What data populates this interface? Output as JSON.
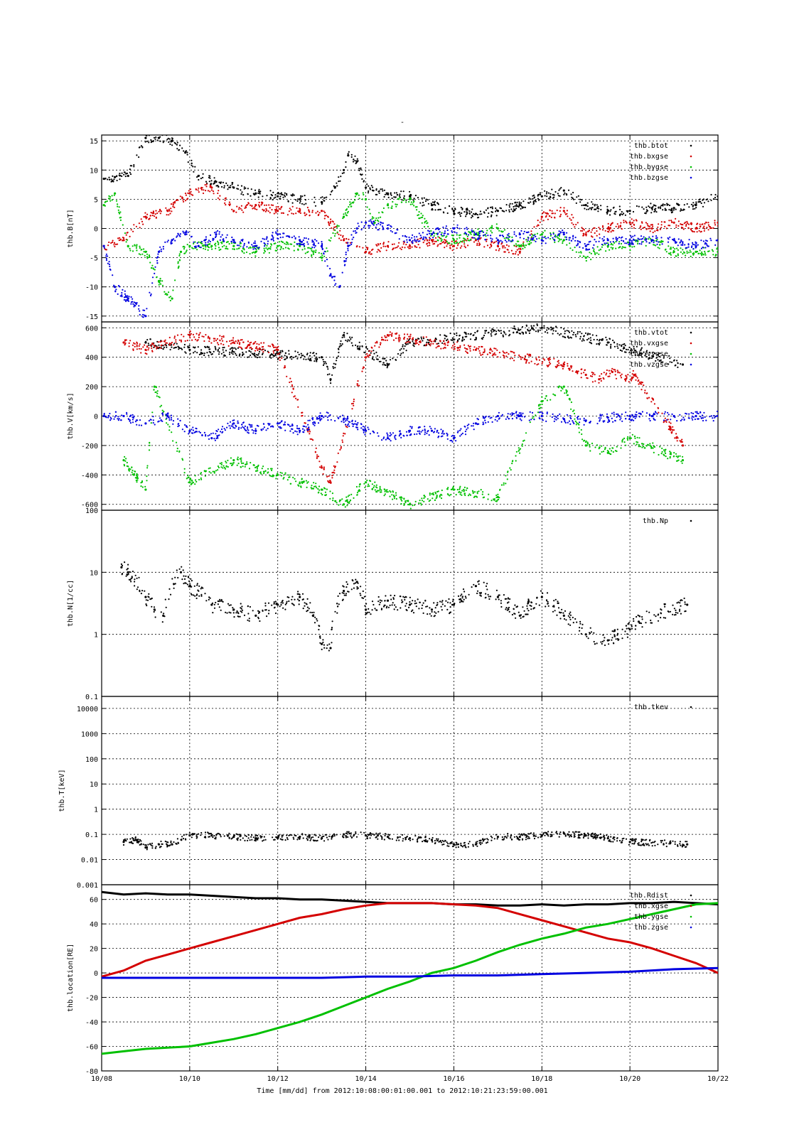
{
  "figure": {
    "top_title": "-",
    "time_label": "Time [mm/dd]  from 2012:10:08:00:01:00.001  to  2012:10:21:23:59:00.001",
    "x_ticks": [
      "10/08",
      "10/10",
      "10/12",
      "10/14",
      "10/16",
      "10/18",
      "10/20",
      "10/22"
    ],
    "colors": {
      "black": "#000000",
      "red": "#d40000",
      "green": "#00c000",
      "blue": "#0000e0"
    }
  },
  "chart_data": [
    {
      "type": "scatter",
      "ylabel": "thb.B[nT]",
      "ylim": [
        -16,
        16
      ],
      "log": false,
      "yticks": [
        -15,
        -10,
        -5,
        0,
        5,
        10,
        15
      ],
      "ytick_labels": [
        "-15",
        "-10",
        "-5",
        "0",
        "5",
        "10",
        "15"
      ],
      "legend_placement": "top-right",
      "grid": true,
      "series": [
        {
          "name": "thb.btot",
          "color": "#000000",
          "mode": "points",
          "x": [
            0.05,
            0.3,
            0.6,
            1.0,
            1.3,
            1.6,
            1.9,
            2.2,
            2.6,
            3.0,
            3.5,
            4.0,
            4.5,
            5.0,
            5.3,
            5.5,
            5.6,
            5.8,
            6.0,
            6.5,
            7.0,
            7.5,
            8.0,
            8.5,
            9.0,
            9.5,
            10.0,
            10.5,
            11.0,
            11.5,
            12.0,
            12.5,
            13.0,
            13.5,
            14.0
          ],
          "y": [
            8.5,
            8.8,
            9.0,
            15.5,
            15.5,
            15.0,
            13.0,
            9.0,
            8.0,
            7.0,
            6.0,
            5.5,
            5.0,
            4.5,
            7.0,
            10.0,
            12.5,
            11.5,
            7.0,
            6.0,
            5.5,
            4.0,
            3.0,
            2.5,
            3.0,
            4.0,
            5.5,
            6.5,
            4.0,
            3.0,
            3.0,
            3.5,
            3.5,
            4.0,
            5.5
          ]
        },
        {
          "name": "thb.bxgse",
          "color": "#d40000",
          "mode": "points",
          "x": [
            0.05,
            0.5,
            1.0,
            1.5,
            2.0,
            2.5,
            3.0,
            3.5,
            4.0,
            4.5,
            5.0,
            5.5,
            6.0,
            6.5,
            7.0,
            7.5,
            8.0,
            8.5,
            9.0,
            9.5,
            10.0,
            10.5,
            11.0,
            11.5,
            12.0,
            12.5,
            13.0,
            13.5,
            14.0
          ],
          "y": [
            -3,
            -2,
            2,
            3,
            6,
            7,
            3,
            4,
            3,
            3,
            3,
            -2,
            -4,
            -3,
            -3,
            -2,
            -3,
            -2,
            -3,
            -4,
            2,
            3,
            -1,
            0,
            1,
            0,
            1,
            0,
            1
          ]
        },
        {
          "name": "thb.bygse",
          "color": "#00c000",
          "mode": "points",
          "x": [
            0.05,
            0.3,
            0.6,
            1.0,
            1.3,
            1.6,
            1.8,
            2.0,
            2.5,
            3.0,
            3.5,
            4.0,
            4.5,
            5.0,
            5.5,
            5.8,
            6.0,
            6.2,
            6.5,
            7.0,
            7.5,
            8.0,
            8.5,
            9.0,
            9.5,
            10.0,
            10.5,
            11.0,
            11.5,
            12.0,
            12.5,
            13.0,
            13.5,
            14.0
          ],
          "y": [
            4,
            6,
            -3,
            -4,
            -9,
            -12,
            -4,
            -3,
            -3,
            -3,
            -4,
            -3,
            -3,
            -5,
            2,
            6,
            5,
            1,
            4,
            5,
            -1,
            -2,
            -1,
            0,
            -3,
            -1,
            -2,
            -5,
            -3,
            -3,
            -2,
            -4,
            -4,
            -4
          ]
        },
        {
          "name": "thb.bzgse",
          "color": "#0000e0",
          "mode": "points",
          "x": [
            0.05,
            0.3,
            0.6,
            1.0,
            1.3,
            1.6,
            1.9,
            2.2,
            2.6,
            3.0,
            3.5,
            4.0,
            4.5,
            5.0,
            5.2,
            5.4,
            5.6,
            5.8,
            6.0,
            6.5,
            7.0,
            7.5,
            8.0,
            8.5,
            9.0,
            9.5,
            10.0,
            10.5,
            11.0,
            11.5,
            12.0,
            12.5,
            13.0,
            13.5,
            14.0
          ],
          "y": [
            -3,
            -10,
            -12,
            -15,
            -4,
            -2,
            -1,
            -3,
            -1,
            -2,
            -3,
            -1,
            -2,
            -3,
            -8,
            -10,
            -3,
            0,
            1,
            0,
            -2,
            -1,
            0,
            -1,
            -2,
            -1,
            -2,
            -1,
            -3,
            -2,
            -2,
            -2,
            -2,
            -3,
            -2
          ]
        }
      ]
    },
    {
      "type": "scatter",
      "ylabel": "thb.V[km/s]",
      "ylim": [
        -640,
        640
      ],
      "log": false,
      "yticks": [
        -600,
        -400,
        -200,
        0,
        200,
        400,
        600
      ],
      "ytick_labels": [
        "-600",
        "-400",
        "-200",
        "0",
        "200",
        "400",
        "600"
      ],
      "legend_placement": "top-right",
      "grid": true,
      "series": [
        {
          "name": "thb.vtot",
          "color": "#000000",
          "mode": "points",
          "x": [
            1.0,
            2.0,
            5.0,
            5.2,
            5.5,
            6.5,
            7.0,
            10.0,
            11.5,
            13.2
          ],
          "y": [
            500,
            450,
            400,
            250,
            550,
            350,
            500,
            600,
            500,
            350
          ]
        },
        {
          "name": "thb.vxgse",
          "color": "#d40000",
          "mode": "points",
          "x": [
            0.5,
            1.0,
            2.0,
            3.0,
            4.0,
            5.0,
            5.2,
            6.0,
            6.5,
            8.5,
            10.5,
            10.8,
            11.0,
            11.3,
            11.6,
            11.9,
            12.1,
            13.2
          ],
          "y": [
            500,
            450,
            550,
            500,
            450,
            -350,
            -450,
            400,
            550,
            450,
            350,
            300,
            280,
            250,
            300,
            250,
            280,
            -200
          ]
        },
        {
          "name": "thb.vygse",
          "color": "#00c000",
          "mode": "points",
          "x": [
            0.5,
            1.0,
            1.2,
            2.0,
            3.0,
            4.0,
            5.0,
            5.5,
            6.0,
            7.0,
            8.0,
            9.0,
            10.0,
            10.5,
            11.0,
            11.5,
            12.0,
            13.2
          ],
          "y": [
            -300,
            -500,
            200,
            -450,
            -300,
            -400,
            -500,
            -600,
            -450,
            -600,
            -500,
            -550,
            100,
            200,
            -200,
            -250,
            -150,
            -300
          ]
        },
        {
          "name": "thb.vzgse",
          "color": "#0000e0",
          "mode": "points",
          "x": [
            0.05,
            0.5,
            1.0,
            1.5,
            2.0,
            2.5,
            3.0,
            3.5,
            4.0,
            4.5,
            5.0,
            5.5,
            6.0,
            6.5,
            7.0,
            7.5,
            8.0,
            8.5,
            9.0,
            9.5,
            10.0,
            10.5,
            11.0,
            11.5,
            12.0,
            12.5,
            13.0,
            13.5,
            14.0
          ],
          "y": [
            0,
            0,
            -50,
            0,
            -100,
            -150,
            -50,
            -100,
            -50,
            -100,
            0,
            -20,
            -100,
            -150,
            -100,
            -100,
            -150,
            -50,
            0,
            0,
            0,
            -20,
            -30,
            -10,
            0,
            0,
            0,
            0,
            0
          ]
        }
      ]
    },
    {
      "type": "scatter",
      "ylabel": "thb.N[1/cc]",
      "ylim": [
        0.1,
        100
      ],
      "log": true,
      "yticks": [
        0.1,
        1,
        10,
        100
      ],
      "ytick_labels": [
        "0.1",
        "1",
        "10",
        "100"
      ],
      "legend_placement": "top-right",
      "grid": true,
      "series": [
        {
          "name": "thb.Np",
          "color": "#000000",
          "mode": "points",
          "x": [
            0.45,
            0.6,
            1.0,
            1.2,
            1.4,
            1.8,
            2.0,
            2.5,
            3.0,
            3.5,
            4.0,
            4.5,
            4.8,
            5.0,
            5.2,
            5.5,
            5.8,
            6.0,
            6.5,
            7.0,
            7.5,
            8.0,
            8.5,
            9.0,
            9.5,
            10.0,
            10.5,
            11.0,
            11.5,
            12.0,
            12.2,
            13.3
          ],
          "y": [
            12,
            10,
            4,
            2.5,
            2,
            10,
            6,
            3,
            2.5,
            2,
            3,
            4,
            2,
            0.7,
            0.6,
            5,
            7,
            2.5,
            3.5,
            3,
            2.5,
            3,
            6,
            4,
            2,
            4,
            2,
            1,
            0.8,
            1.2,
            1.6,
            3
          ]
        }
      ]
    },
    {
      "type": "scatter",
      "ylabel": "thb.T[keV]",
      "ylim": [
        0.001,
        30000
      ],
      "log": true,
      "yticks": [
        0.001,
        0.01,
        0.1,
        1,
        10,
        100,
        1000,
        10000
      ],
      "ytick_labels": [
        "0.001",
        "0.01",
        "0.1",
        "1",
        "10",
        "100",
        "1000",
        "10000"
      ],
      "legend_placement": "top-right",
      "grid": true,
      "series": [
        {
          "name": "thb.tkev",
          "color": "#000000",
          "mode": "points",
          "x": [
            0.5,
            0.8,
            1.0,
            1.3,
            1.6,
            2.0,
            2.5,
            3.0,
            3.5,
            4.0,
            4.5,
            5.0,
            5.5,
            6.0,
            6.5,
            7.0,
            7.5,
            8.0,
            8.5,
            9.0,
            9.5,
            10.0,
            10.5,
            11.0,
            11.5,
            12.0,
            13.3
          ],
          "y": [
            0.05,
            0.06,
            0.03,
            0.04,
            0.04,
            0.09,
            0.09,
            0.08,
            0.07,
            0.07,
            0.08,
            0.07,
            0.1,
            0.09,
            0.08,
            0.07,
            0.06,
            0.04,
            0.04,
            0.08,
            0.08,
            0.09,
            0.11,
            0.09,
            0.07,
            0.05,
            0.04
          ]
        }
      ]
    },
    {
      "type": "line",
      "ylabel": "thb.location[RE]",
      "ylim": [
        -80,
        72
      ],
      "log": false,
      "yticks": [
        -80,
        -60,
        -40,
        -20,
        0,
        20,
        40,
        60
      ],
      "ytick_labels": [
        "-80",
        "-60",
        "-40",
        "-20",
        "0",
        "20",
        "40",
        "60"
      ],
      "legend_placement": "top-right",
      "grid": true,
      "series": [
        {
          "name": "thb.Rdist",
          "color": "#000000",
          "mode": "line",
          "x": [
            0.0,
            0.5,
            1.0,
            1.5,
            2.0,
            2.5,
            3.0,
            3.5,
            4.0,
            4.5,
            5.0,
            5.5,
            6.0,
            6.5,
            7.0,
            7.5,
            8.0,
            8.5,
            9.0,
            9.5,
            10.0,
            10.5,
            11.0,
            11.5,
            12.0,
            12.5,
            13.0,
            13.5,
            14.0
          ],
          "y": [
            66,
            64,
            65,
            64,
            64,
            63,
            62,
            61,
            61,
            60,
            60,
            59,
            58,
            57,
            57,
            57,
            56,
            56,
            55,
            55,
            56,
            55,
            56,
            56,
            57,
            57,
            58,
            57,
            56
          ]
        },
        {
          "name": "thb.xgse",
          "color": "#d40000",
          "mode": "line",
          "x": [
            0.0,
            0.5,
            1.0,
            1.5,
            2.0,
            2.5,
            3.0,
            3.5,
            4.0,
            4.5,
            5.0,
            5.5,
            6.0,
            6.5,
            7.0,
            7.5,
            8.0,
            8.5,
            9.0,
            9.5,
            10.0,
            10.5,
            11.0,
            11.5,
            12.0,
            12.5,
            13.0,
            13.5,
            14.0
          ],
          "y": [
            -3,
            2,
            10,
            15,
            20,
            25,
            30,
            35,
            40,
            45,
            48,
            52,
            55,
            57,
            57,
            57,
            56,
            55,
            53,
            48,
            43,
            38,
            33,
            28,
            25,
            20,
            14,
            8,
            0
          ]
        },
        {
          "name": "thb.ygse",
          "color": "#00c000",
          "mode": "line",
          "x": [
            0.0,
            0.5,
            1.0,
            1.5,
            2.0,
            2.5,
            3.0,
            3.5,
            4.0,
            4.5,
            5.0,
            5.5,
            6.0,
            6.5,
            7.0,
            7.5,
            8.0,
            8.5,
            9.0,
            9.5,
            10.0,
            10.5,
            11.0,
            11.5,
            12.0,
            12.5,
            13.0,
            13.5,
            14.0
          ],
          "y": [
            -66,
            -64,
            -62,
            -61,
            -60,
            -57,
            -54,
            -50,
            -45,
            -40,
            -34,
            -27,
            -20,
            -13,
            -7,
            0,
            4,
            10,
            17,
            23,
            28,
            32,
            37,
            40,
            44,
            48,
            52,
            56,
            57
          ]
        },
        {
          "name": "thb.zgse",
          "color": "#0000e0",
          "mode": "line",
          "x": [
            0.0,
            1.0,
            2.0,
            3.0,
            4.0,
            5.0,
            6.0,
            7.0,
            8.0,
            9.0,
            10.0,
            11.0,
            12.0,
            13.0,
            14.0
          ],
          "y": [
            -4,
            -4,
            -4,
            -4,
            -4,
            -4,
            -3,
            -3,
            -2,
            -2,
            -1,
            0,
            1,
            3,
            4
          ]
        }
      ]
    }
  ]
}
